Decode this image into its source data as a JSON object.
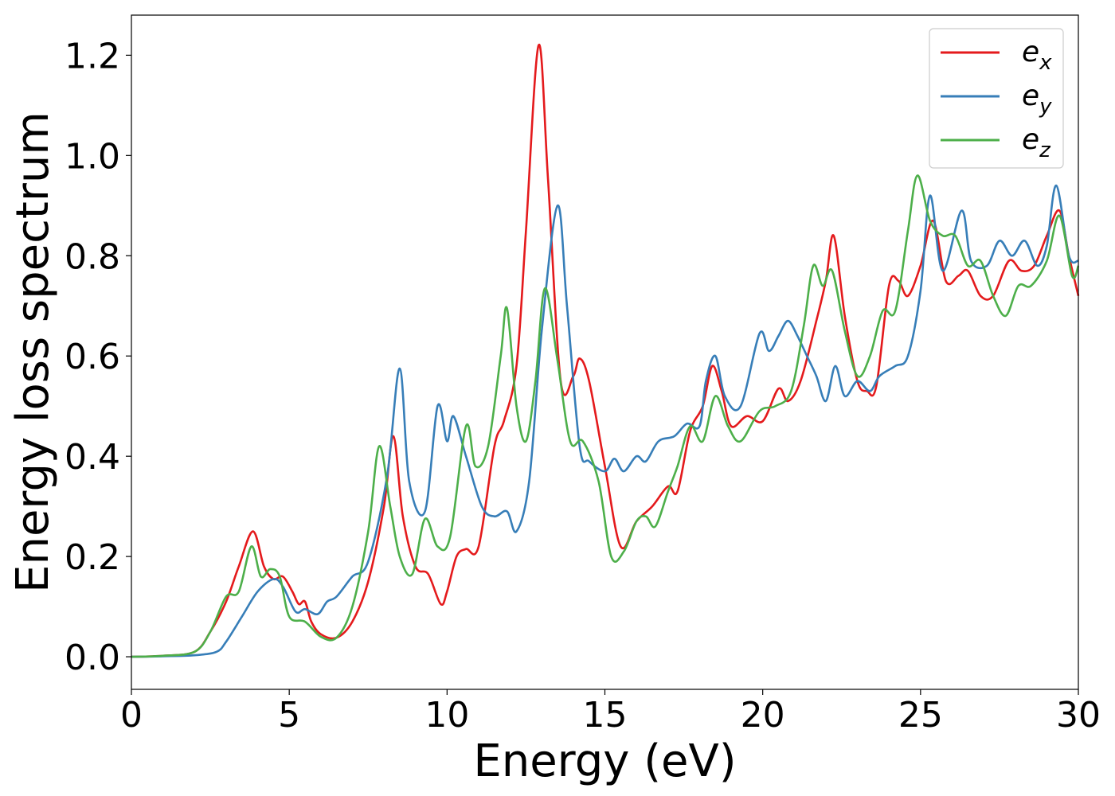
{
  "chart_data": {
    "type": "line",
    "title": "",
    "xlabel": "Energy (eV)",
    "ylabel": "Energy loss spectrum",
    "xlim": [
      0,
      30
    ],
    "ylim": [
      -0.065,
      1.28
    ],
    "xticks": [
      "0",
      "5",
      "10",
      "15",
      "20",
      "25",
      "30"
    ],
    "yticks": [
      "0.0",
      "0.2",
      "0.4",
      "0.6",
      "0.8",
      "1.0",
      "1.2"
    ],
    "grid": false,
    "legend": "top-right",
    "series": [
      {
        "name": "e",
        "sub": "x",
        "color": "#e41a1c",
        "points": [
          [
            0,
            0
          ],
          [
            1,
            0.002
          ],
          [
            2,
            0.01
          ],
          [
            2.5,
            0.05
          ],
          [
            3,
            0.11
          ],
          [
            3.4,
            0.18
          ],
          [
            3.85,
            0.25
          ],
          [
            4.2,
            0.18
          ],
          [
            4.5,
            0.155
          ],
          [
            4.8,
            0.16
          ],
          [
            5.1,
            0.13
          ],
          [
            5.3,
            0.105
          ],
          [
            5.5,
            0.11
          ],
          [
            5.7,
            0.07
          ],
          [
            6,
            0.045
          ],
          [
            6.5,
            0.038
          ],
          [
            7,
            0.07
          ],
          [
            7.5,
            0.15
          ],
          [
            8,
            0.3
          ],
          [
            8.3,
            0.44
          ],
          [
            8.6,
            0.28
          ],
          [
            9,
            0.18
          ],
          [
            9.4,
            0.165
          ],
          [
            9.8,
            0.105
          ],
          [
            10,
            0.13
          ],
          [
            10.3,
            0.2
          ],
          [
            10.6,
            0.215
          ],
          [
            11,
            0.22
          ],
          [
            11.5,
            0.42
          ],
          [
            11.8,
            0.47
          ],
          [
            12.2,
            0.58
          ],
          [
            12.5,
            0.85
          ],
          [
            12.9,
            1.22
          ],
          [
            13.2,
            0.95
          ],
          [
            13.6,
            0.55
          ],
          [
            14,
            0.56
          ],
          [
            14.2,
            0.595
          ],
          [
            14.5,
            0.55
          ],
          [
            15,
            0.38
          ],
          [
            15.5,
            0.22
          ],
          [
            16,
            0.27
          ],
          [
            16.5,
            0.3
          ],
          [
            17,
            0.34
          ],
          [
            17.3,
            0.33
          ],
          [
            17.7,
            0.45
          ],
          [
            18.1,
            0.5
          ],
          [
            18.4,
            0.58
          ],
          [
            18.7,
            0.53
          ],
          [
            19,
            0.46
          ],
          [
            19.5,
            0.48
          ],
          [
            20,
            0.47
          ],
          [
            20.5,
            0.535
          ],
          [
            20.8,
            0.51
          ],
          [
            21.2,
            0.55
          ],
          [
            21.7,
            0.67
          ],
          [
            22,
            0.75
          ],
          [
            22.25,
            0.84
          ],
          [
            22.6,
            0.68
          ],
          [
            23,
            0.55
          ],
          [
            23.3,
            0.53
          ],
          [
            23.6,
            0.54
          ],
          [
            24,
            0.74
          ],
          [
            24.3,
            0.75
          ],
          [
            24.6,
            0.72
          ],
          [
            25,
            0.78
          ],
          [
            25.4,
            0.87
          ],
          [
            25.8,
            0.75
          ],
          [
            26.2,
            0.76
          ],
          [
            26.5,
            0.77
          ],
          [
            26.9,
            0.72
          ],
          [
            27.3,
            0.72
          ],
          [
            27.8,
            0.79
          ],
          [
            28.2,
            0.77
          ],
          [
            28.6,
            0.78
          ],
          [
            29.0,
            0.84
          ],
          [
            29.4,
            0.89
          ],
          [
            29.7,
            0.8
          ],
          [
            30,
            0.72
          ]
        ]
      },
      {
        "name": "e",
        "sub": "y",
        "color": "#377eb8",
        "points": [
          [
            0,
            0
          ],
          [
            1,
            0.001
          ],
          [
            2,
            0.003
          ],
          [
            2.7,
            0.01
          ],
          [
            3,
            0.03
          ],
          [
            3.5,
            0.08
          ],
          [
            4,
            0.13
          ],
          [
            4.5,
            0.155
          ],
          [
            4.8,
            0.14
          ],
          [
            5.2,
            0.09
          ],
          [
            5.5,
            0.095
          ],
          [
            5.9,
            0.085
          ],
          [
            6.2,
            0.11
          ],
          [
            6.5,
            0.12
          ],
          [
            7,
            0.16
          ],
          [
            7.5,
            0.19
          ],
          [
            8.1,
            0.36
          ],
          [
            8.5,
            0.575
          ],
          [
            8.8,
            0.35
          ],
          [
            9.3,
            0.29
          ],
          [
            9.7,
            0.5
          ],
          [
            10,
            0.43
          ],
          [
            10.2,
            0.48
          ],
          [
            10.6,
            0.4
          ],
          [
            11.1,
            0.3
          ],
          [
            11.5,
            0.28
          ],
          [
            11.9,
            0.29
          ],
          [
            12.2,
            0.25
          ],
          [
            12.6,
            0.35
          ],
          [
            13.0,
            0.65
          ],
          [
            13.5,
            0.9
          ],
          [
            13.8,
            0.7
          ],
          [
            14.2,
            0.42
          ],
          [
            14.5,
            0.39
          ],
          [
            15,
            0.37
          ],
          [
            15.3,
            0.395
          ],
          [
            15.6,
            0.37
          ],
          [
            16,
            0.4
          ],
          [
            16.3,
            0.39
          ],
          [
            16.7,
            0.43
          ],
          [
            17.2,
            0.44
          ],
          [
            17.6,
            0.465
          ],
          [
            18,
            0.46
          ],
          [
            18.2,
            0.55
          ],
          [
            18.5,
            0.6
          ],
          [
            18.8,
            0.52
          ],
          [
            19.3,
            0.5
          ],
          [
            19.9,
            0.645
          ],
          [
            20.2,
            0.61
          ],
          [
            20.5,
            0.64
          ],
          [
            20.8,
            0.67
          ],
          [
            21.1,
            0.64
          ],
          [
            21.4,
            0.6
          ],
          [
            21.7,
            0.56
          ],
          [
            22,
            0.51
          ],
          [
            22.3,
            0.58
          ],
          [
            22.6,
            0.52
          ],
          [
            23,
            0.55
          ],
          [
            23.4,
            0.53
          ],
          [
            23.7,
            0.56
          ],
          [
            24.2,
            0.58
          ],
          [
            24.6,
            0.6
          ],
          [
            25,
            0.73
          ],
          [
            25.3,
            0.92
          ],
          [
            25.7,
            0.77
          ],
          [
            26.3,
            0.89
          ],
          [
            26.6,
            0.79
          ],
          [
            27.1,
            0.78
          ],
          [
            27.5,
            0.83
          ],
          [
            27.9,
            0.8
          ],
          [
            28.3,
            0.83
          ],
          [
            28.7,
            0.78
          ],
          [
            29.0,
            0.82
          ],
          [
            29.3,
            0.94
          ],
          [
            29.7,
            0.8
          ],
          [
            30,
            0.79
          ]
        ]
      },
      {
        "name": "e",
        "sub": "z",
        "color": "#4daf4a",
        "points": [
          [
            0,
            0
          ],
          [
            1,
            0.002
          ],
          [
            2,
            0.01
          ],
          [
            2.5,
            0.05
          ],
          [
            3,
            0.12
          ],
          [
            3.4,
            0.13
          ],
          [
            3.8,
            0.22
          ],
          [
            4.1,
            0.16
          ],
          [
            4.4,
            0.175
          ],
          [
            4.7,
            0.16
          ],
          [
            5,
            0.08
          ],
          [
            5.5,
            0.07
          ],
          [
            6,
            0.04
          ],
          [
            6.5,
            0.038
          ],
          [
            7,
            0.1
          ],
          [
            7.5,
            0.25
          ],
          [
            7.85,
            0.42
          ],
          [
            8.2,
            0.3
          ],
          [
            8.5,
            0.2
          ],
          [
            8.9,
            0.165
          ],
          [
            9.3,
            0.275
          ],
          [
            9.7,
            0.22
          ],
          [
            10.1,
            0.24
          ],
          [
            10.6,
            0.46
          ],
          [
            10.9,
            0.38
          ],
          [
            11.3,
            0.42
          ],
          [
            11.7,
            0.6
          ],
          [
            11.9,
            0.695
          ],
          [
            12.2,
            0.5
          ],
          [
            12.5,
            0.43
          ],
          [
            12.8,
            0.55
          ],
          [
            13.1,
            0.735
          ],
          [
            13.5,
            0.59
          ],
          [
            13.9,
            0.43
          ],
          [
            14.3,
            0.43
          ],
          [
            14.8,
            0.35
          ],
          [
            15.2,
            0.2
          ],
          [
            15.6,
            0.21
          ],
          [
            16,
            0.27
          ],
          [
            16.3,
            0.28
          ],
          [
            16.6,
            0.26
          ],
          [
            17,
            0.33
          ],
          [
            17.3,
            0.38
          ],
          [
            17.7,
            0.46
          ],
          [
            18.1,
            0.43
          ],
          [
            18.5,
            0.52
          ],
          [
            18.9,
            0.46
          ],
          [
            19.3,
            0.43
          ],
          [
            19.9,
            0.49
          ],
          [
            20.4,
            0.5
          ],
          [
            20.9,
            0.53
          ],
          [
            21.3,
            0.66
          ],
          [
            21.6,
            0.78
          ],
          [
            21.9,
            0.74
          ],
          [
            22.2,
            0.77
          ],
          [
            22.6,
            0.65
          ],
          [
            23,
            0.56
          ],
          [
            23.4,
            0.6
          ],
          [
            23.8,
            0.69
          ],
          [
            24.2,
            0.69
          ],
          [
            24.6,
            0.85
          ],
          [
            24.9,
            0.96
          ],
          [
            25.3,
            0.87
          ],
          [
            25.7,
            0.84
          ],
          [
            26.1,
            0.84
          ],
          [
            26.5,
            0.78
          ],
          [
            26.9,
            0.79
          ],
          [
            27.3,
            0.72
          ],
          [
            27.7,
            0.68
          ],
          [
            28.1,
            0.74
          ],
          [
            28.5,
            0.74
          ],
          [
            29.0,
            0.79
          ],
          [
            29.4,
            0.88
          ],
          [
            29.8,
            0.76
          ],
          [
            30,
            0.78
          ]
        ]
      }
    ]
  }
}
